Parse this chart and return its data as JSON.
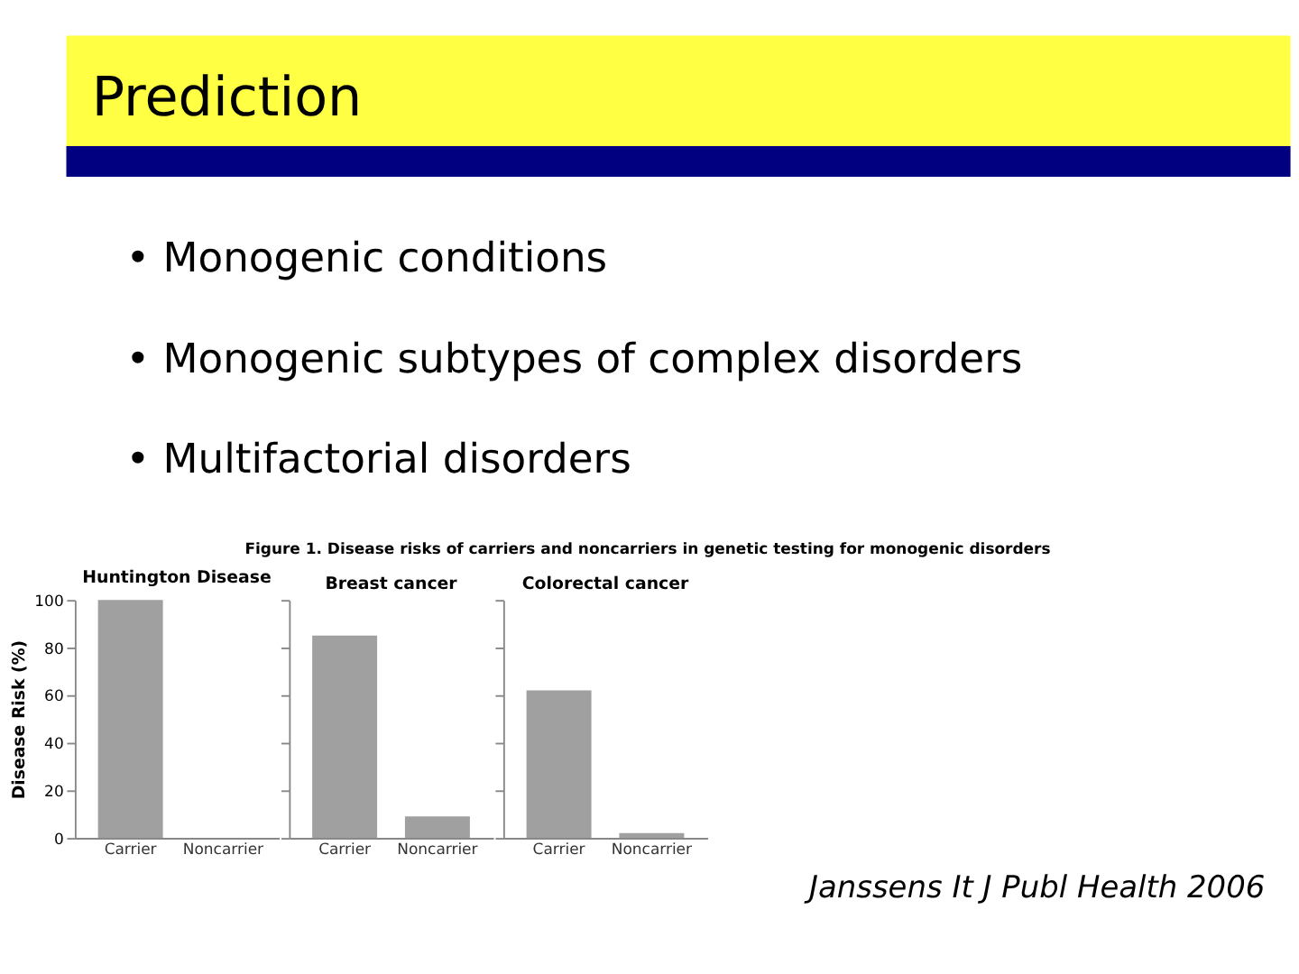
{
  "chart_data": [
    {
      "type": "bar",
      "title": "Huntington Disease",
      "categories": [
        "Carrier",
        "Noncarrier"
      ],
      "values": [
        100,
        0
      ],
      "color": "#a0a0a0",
      "ylabel": "Disease Risk (%)",
      "ylim": [
        0,
        100
      ],
      "yticks": [
        0,
        20,
        40,
        60,
        80,
        100
      ],
      "grid": false,
      "annotations": [
        "Prediction",
        "• Monogenic conditions",
        "• Monogenic subtypes of complex disorders",
        "• Multifactorial disorders",
        "Figure 1. Disease risks of carriers and noncarriers in genetic testing for monogenic disorders",
        "Janssens It J Publ Health 2006"
      ]
    },
    {
      "type": "bar",
      "title": "Breast cancer",
      "categories": [
        "Carrier",
        "Noncarrier"
      ],
      "values": [
        85,
        9
      ],
      "color": "#a0a0a0",
      "ylim": [
        0,
        100
      ],
      "yticks": [
        0,
        20,
        40,
        60,
        80,
        100
      ],
      "grid": false,
      "tick_labels": "x"
    },
    {
      "type": "bar",
      "title": "Colorectal cancer",
      "categories": [
        "Carrier",
        "Noncarrier"
      ],
      "values": [
        62,
        2
      ],
      "color": "#a0a0a0",
      "ylim": [
        0,
        100
      ],
      "yticks": [
        0,
        20,
        40,
        60,
        80,
        100
      ],
      "grid": false,
      "tick_labels": "x"
    }
  ]
}
